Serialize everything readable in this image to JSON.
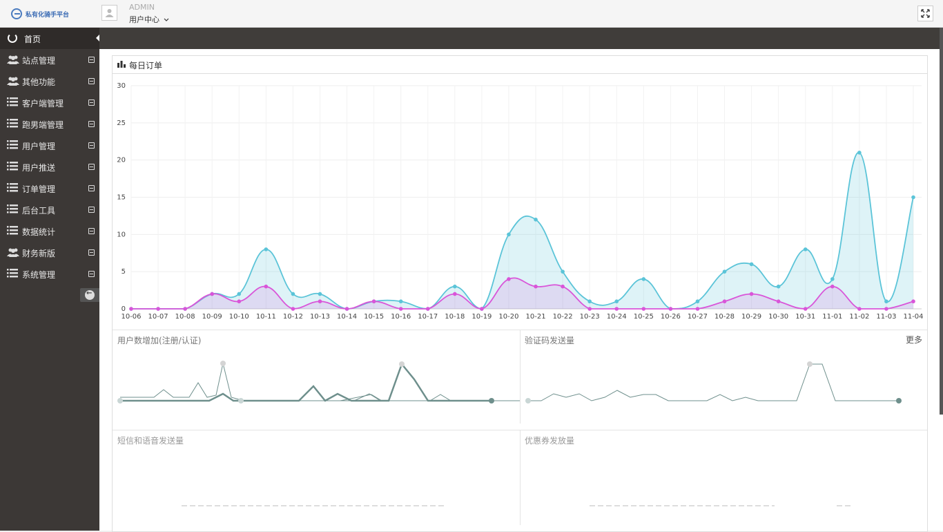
{
  "app": {
    "logo_text": "私有化骑手平台"
  },
  "user": {
    "role": "ADMIN",
    "menu_label": "用户中心"
  },
  "sidebar": {
    "items": [
      {
        "label": "首页",
        "icon": "home-icon"
      },
      {
        "label": "站点管理",
        "icon": "users-icon"
      },
      {
        "label": "其他功能",
        "icon": "users-icon"
      },
      {
        "label": "客户端管理",
        "icon": "list-icon"
      },
      {
        "label": "跑男端管理",
        "icon": "list-icon"
      },
      {
        "label": "用户管理",
        "icon": "list-icon"
      },
      {
        "label": "用户推送",
        "icon": "list-icon"
      },
      {
        "label": "订单管理",
        "icon": "list-icon"
      },
      {
        "label": "后台工具",
        "icon": "list-icon"
      },
      {
        "label": "数据统计",
        "icon": "list-icon"
      },
      {
        "label": "财务新版",
        "icon": "users-icon"
      },
      {
        "label": "系统管理",
        "icon": "list-icon"
      }
    ]
  },
  "panels": {
    "daily_orders": "每日订单",
    "user_growth": "用户数增加(注册/认证)",
    "verify_code": "验证码发送量",
    "more": "更多",
    "sms_voice": "短信和语音发送量",
    "coupon": "优惠券发放量"
  },
  "colors": {
    "series_total": "#5bc4d8",
    "series_sub": "#d955d9",
    "sparkline": "#6e8f8c"
  },
  "chart_data": {
    "type": "area",
    "title": "每日订单",
    "x": [
      "10-06",
      "10-07",
      "10-08",
      "10-09",
      "10-10",
      "10-11",
      "10-12",
      "10-13",
      "10-14",
      "10-15",
      "10-16",
      "10-17",
      "10-18",
      "10-19",
      "10-20",
      "10-21",
      "10-22",
      "10-23",
      "10-24",
      "10-25",
      "10-26",
      "10-27",
      "10-28",
      "10-29",
      "10-30",
      "10-31",
      "11-01",
      "11-02",
      "11-03",
      "11-04"
    ],
    "ylim": [
      0,
      30
    ],
    "yticks": [
      0,
      5,
      10,
      15,
      20,
      25,
      30
    ],
    "grid": true,
    "series": [
      {
        "color": "#5bc4d8",
        "values": [
          0,
          0,
          0,
          2,
          2,
          8,
          2,
          2,
          0,
          1,
          1,
          0,
          3,
          0,
          10,
          12,
          5,
          1,
          1,
          4,
          0,
          1,
          5,
          6,
          3,
          8,
          4,
          21,
          1,
          15
        ]
      },
      {
        "color": "#d955d9",
        "values": [
          0,
          0,
          0,
          2,
          1,
          3,
          0,
          1,
          0,
          1,
          0,
          0,
          2,
          0,
          4,
          3,
          3,
          0,
          0,
          0,
          0,
          0,
          1,
          2,
          1,
          0,
          3,
          0,
          0,
          1
        ]
      }
    ]
  }
}
